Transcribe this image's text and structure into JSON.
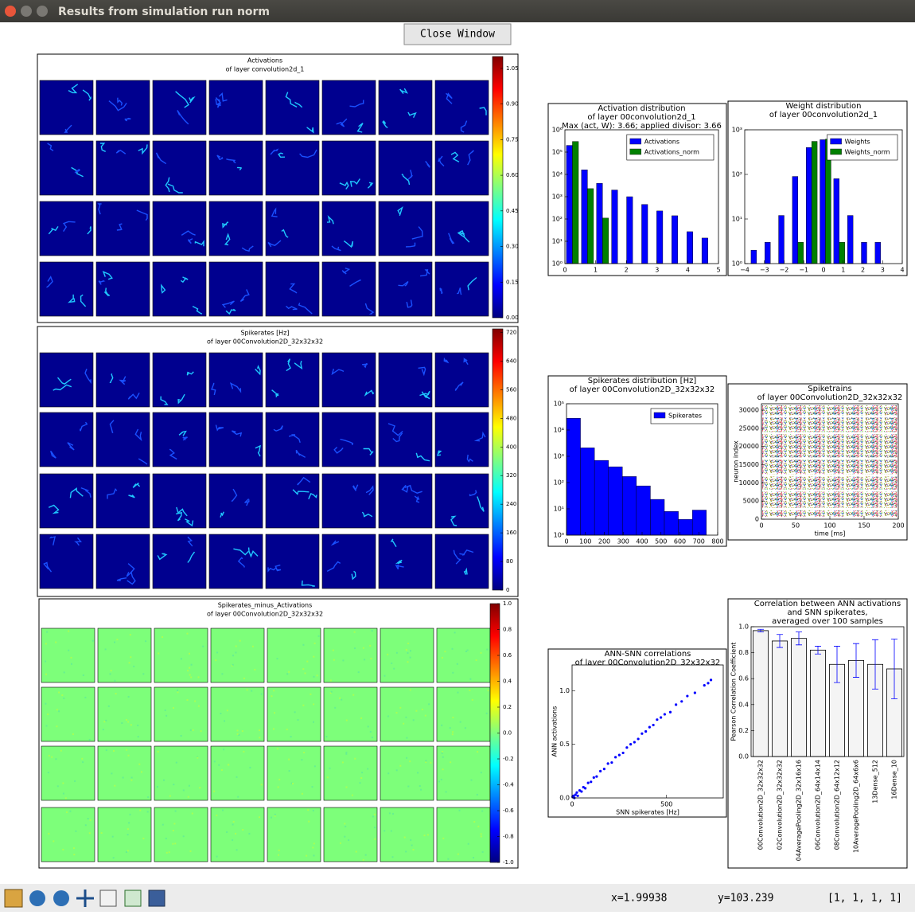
{
  "window": {
    "title": "Results from simulation run norm",
    "close_button": "Close Window"
  },
  "heatmaps": [
    {
      "title": "Activations",
      "subtitle": "of layer convolution2d_1",
      "colorbar_lim": [
        0,
        1.1
      ],
      "colorbar_ticks": [
        {
          "value": 0,
          "label": "0.00"
        },
        0.15,
        {
          "value": 0.3,
          "label": "0.30"
        },
        0.45,
        {
          "value": 0.6,
          "label": "0.60"
        },
        0.75,
        {
          "value": 0.9,
          "label": "0.90"
        },
        1.05
      ],
      "tile_color": "#00008f"
    },
    {
      "title": "Spikerates [Hz]",
      "subtitle": "of layer 00Convolution2D_32x32x32",
      "colorbar_lim": [
        0,
        730
      ],
      "colorbar_ticks": [
        0,
        80,
        160,
        240,
        320,
        400,
        480,
        560,
        640,
        720
      ],
      "tile_color": "#00008f"
    },
    {
      "title": "Spikerates_minus_Activations",
      "subtitle": "of layer 00Convolution2D_32x32x32",
      "colorbar_lim": [
        -1,
        1
      ],
      "colorbar_ticks": [
        {
          "value": -1,
          "label": "-1.0"
        },
        -0.8,
        -0.6,
        -0.4,
        -0.2,
        {
          "value": 0,
          "label": "0.0"
        },
        0.2,
        0.4,
        0.6,
        0.8,
        {
          "value": 1,
          "label": "1.0"
        }
      ],
      "tile_color": "#7dff7a"
    }
  ],
  "chart_data": [
    {
      "type": "histogram",
      "title": [
        "Activation distribution",
        "of layer 00convolution2d_1",
        "Max (act, W): 3.66; applied divisor: 3.66"
      ],
      "bins": [
        0,
        0.49,
        0.98,
        1.47,
        1.96,
        2.45,
        2.94,
        3.43,
        3.92,
        4.41,
        4.9
      ],
      "series": [
        {
          "name": "Activations",
          "color": "#0000ff",
          "values": [
            200000,
            16000,
            4000,
            2000,
            1000,
            450,
            230,
            140,
            27,
            14
          ]
        },
        {
          "name": "Activations_norm",
          "color": "#008000",
          "values": [
            300000,
            2300,
            110,
            null,
            null,
            null,
            null,
            null,
            null,
            null
          ]
        }
      ],
      "xlim": [
        0,
        5
      ],
      "xticks": [
        0,
        1,
        2,
        3,
        4,
        5
      ],
      "log_y": true,
      "ylim": [
        1,
        1000000
      ],
      "yticks": [
        {
          "value": 1,
          "label": "10⁰"
        },
        {
          "value": 10,
          "label": "10¹"
        },
        {
          "value": 100,
          "label": "10²"
        },
        {
          "value": 1000,
          "label": "10³"
        },
        {
          "value": 10000,
          "label": "10⁴"
        },
        {
          "value": 100000,
          "label": "10⁵"
        },
        {
          "value": 1000000,
          "label": "10⁶"
        }
      ],
      "legend": "upper right"
    },
    {
      "type": "histogram",
      "title": [
        "Weight distribution",
        "of layer 00convolution2d_1"
      ],
      "bins": [
        -3.75,
        -3.05,
        -2.35,
        -1.65,
        -0.95,
        -0.25,
        0.45,
        1.15,
        1.85,
        2.55,
        3.25
      ],
      "series": [
        {
          "name": "Weights",
          "color": "#0000ff",
          "values": [
            2,
            3,
            12,
            90,
            400,
            600,
            80,
            12,
            3,
            3
          ]
        },
        {
          "name": "Weights_norm",
          "color": "#008000",
          "values": [
            null,
            null,
            null,
            3,
            550,
            620,
            3,
            null,
            null,
            null
          ]
        }
      ],
      "xlim": [
        -4,
        4
      ],
      "xticks": [
        {
          "value": -4,
          "label": "−4"
        },
        {
          "value": -3,
          "label": "−3"
        },
        {
          "value": -2,
          "label": "−2"
        },
        {
          "value": -1,
          "label": "−1"
        },
        0,
        1,
        2,
        3,
        4
      ],
      "log_y": true,
      "ylim": [
        1,
        1000
      ],
      "yticks": [
        {
          "value": 1,
          "label": "10⁰"
        },
        {
          "value": 10,
          "label": "10¹"
        },
        {
          "value": 100,
          "label": "10²"
        },
        {
          "value": 1000,
          "label": "10³"
        }
      ],
      "legend": "upper right"
    },
    {
      "type": "histogram",
      "title": [
        "Spikerates distribution [Hz]",
        "of layer 00Convolution2D_32x32x32"
      ],
      "bins": [
        0,
        74,
        148,
        222,
        296,
        370,
        444,
        518,
        592,
        666,
        740
      ],
      "series": [
        {
          "name": "Spikerates",
          "color": "#0000ff",
          "values": [
            28000,
            2100,
            700,
            400,
            170,
            75,
            23,
            8,
            4,
            9
          ]
        }
      ],
      "xlim": [
        0,
        800
      ],
      "xticks": [
        0,
        100,
        200,
        300,
        400,
        500,
        600,
        700,
        800
      ],
      "log_y": true,
      "ylim": [
        1,
        100000
      ],
      "yticks": [
        {
          "value": 1,
          "label": "10⁰"
        },
        {
          "value": 10,
          "label": "10¹"
        },
        {
          "value": 100,
          "label": "10²"
        },
        {
          "value": 1000,
          "label": "10³"
        },
        {
          "value": 10000,
          "label": "10⁴"
        },
        {
          "value": 100000,
          "label": "10⁵"
        }
      ],
      "legend": "upper right"
    },
    {
      "type": "raster",
      "title": [
        "Spiketrains",
        "of layer 00Convolution2D_32x32x32"
      ],
      "xlabel": "time [ms]",
      "ylabel": "neuron index",
      "xlim": [
        0,
        200
      ],
      "xticks": [
        0,
        50,
        100,
        150,
        200
      ],
      "ylim": [
        0,
        31750
      ],
      "yticks": [
        0,
        5000,
        10000,
        15000,
        20000,
        25000,
        30000
      ]
    },
    {
      "type": "scatter",
      "title": [
        "ANN-SNN correlations",
        "of layer 00Convolution2D_32x32x32"
      ],
      "xlabel": "SNN spikerates [Hz]",
      "ylabel": "ANN activations",
      "x": [
        3,
        8,
        12,
        18,
        25,
        30,
        40,
        50,
        60,
        70,
        85,
        100,
        115,
        130,
        150,
        170,
        190,
        210,
        230,
        250,
        270,
        290,
        310,
        330,
        350,
        370,
        390,
        410,
        430,
        450,
        470,
        490,
        520,
        550,
        580,
        610,
        650,
        700,
        720,
        735
      ],
      "values": [
        0.01,
        0.02,
        0.0,
        0.03,
        0.05,
        0.02,
        0.07,
        0.06,
        0.1,
        0.09,
        0.14,
        0.15,
        0.19,
        0.2,
        0.25,
        0.27,
        0.32,
        0.33,
        0.38,
        0.4,
        0.42,
        0.47,
        0.5,
        0.52,
        0.55,
        0.6,
        0.62,
        0.66,
        0.68,
        0.73,
        0.75,
        0.78,
        0.8,
        0.87,
        0.9,
        0.95,
        0.98,
        1.05,
        1.07,
        1.1
      ],
      "color": "#0000ff",
      "xlim": [
        0,
        800
      ],
      "xticks": [
        0,
        500
      ],
      "ylim": [
        0,
        1.24
      ],
      "yticks": [
        {
          "value": 0,
          "label": "0.0"
        },
        0.5,
        {
          "value": 1,
          "label": "1.0"
        }
      ]
    },
    {
      "type": "bar",
      "title": [
        "Correlation between ANN activations",
        "and SNN spikerates,",
        "averaged over 100 samples"
      ],
      "ylabel": "Pearson Correlation Coefficient",
      "categories": [
        "00Convolution2D_32x32x32",
        "02Convolution2D_32x32x32",
        "04AveragePooling2D_32x16x16",
        "06Convolution2D_64x14x14",
        "08Convolution2D_64x12x12",
        "10AveragePooling2D_64x6x6",
        "13Dense_512",
        "16Dense_10"
      ],
      "values": [
        0.97,
        0.89,
        0.91,
        0.82,
        0.71,
        0.74,
        0.71,
        0.675
      ],
      "errors": [
        0.01,
        0.05,
        0.05,
        0.03,
        0.14,
        0.13,
        0.19,
        0.23
      ],
      "color": "#f4f4f4",
      "error_color": "#0000ff",
      "ylim": [
        0,
        1
      ],
      "yticks": [
        {
          "value": 0,
          "label": "0.0"
        },
        0.2,
        0.4,
        0.6,
        0.8,
        {
          "value": 1,
          "label": "1.0"
        }
      ]
    }
  ],
  "status": {
    "x": "x=1.99938",
    "y": "y=103.239",
    "shape": "[1, 1, 1, 1]"
  }
}
